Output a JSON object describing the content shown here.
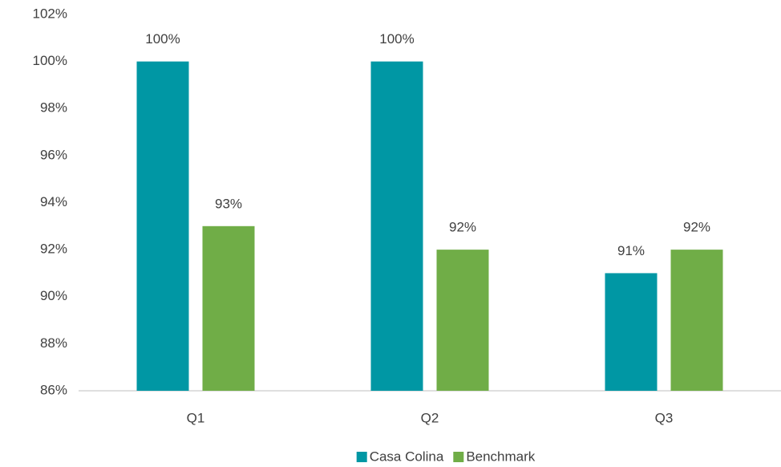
{
  "chart_data": {
    "type": "bar",
    "categories": [
      "Q1",
      "Q2",
      "Q3"
    ],
    "series": [
      {
        "name": "Casa Colina",
        "color": "#0097A4",
        "values": [
          100,
          100,
          91
        ],
        "value_labels": [
          "100%",
          "100%",
          "91%"
        ]
      },
      {
        "name": "Benchmark",
        "color": "#70AD47",
        "values": [
          93,
          92,
          92
        ],
        "value_labels": [
          "93%",
          "92%",
          "92%"
        ]
      }
    ],
    "ylim": [
      86,
      102
    ],
    "yticks": [
      {
        "value": 86,
        "label": "86%"
      },
      {
        "value": 88,
        "label": "88%"
      },
      {
        "value": 90,
        "label": "90%"
      },
      {
        "value": 92,
        "label": "92%"
      },
      {
        "value": 94,
        "label": "94%"
      },
      {
        "value": 96,
        "label": "96%"
      },
      {
        "value": 98,
        "label": "98%"
      },
      {
        "value": 100,
        "label": "100%"
      },
      {
        "value": 102,
        "label": "102%"
      }
    ],
    "grid": false,
    "legend": "bottom"
  }
}
